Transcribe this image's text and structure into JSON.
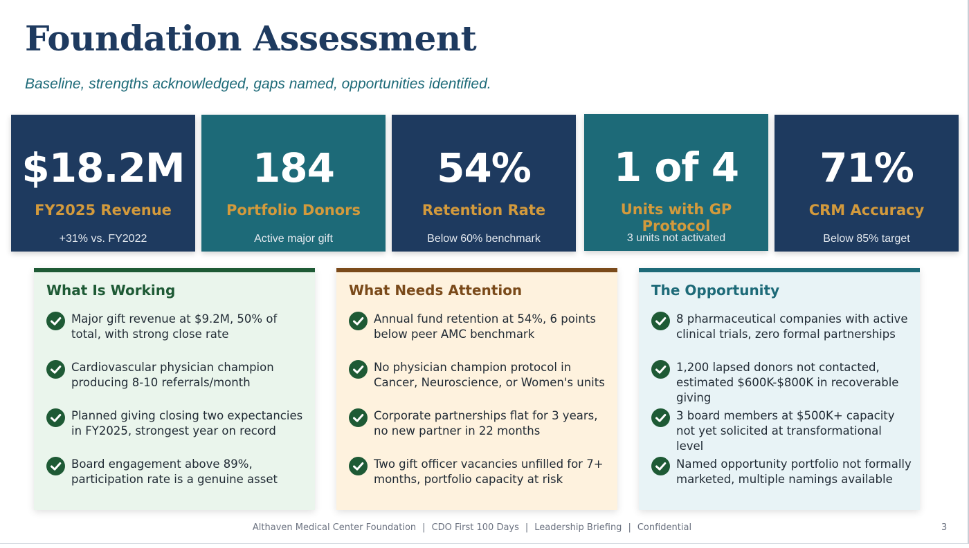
{
  "title": "Foundation Assessment",
  "subtitle": "Baseline, strengths acknowledged, gaps named, opportunities identified.",
  "stats": [
    {
      "value": "$18.2M",
      "label": "FY2025 Revenue",
      "note": "+31% vs. FY2022"
    },
    {
      "value": "184",
      "label": "Portfolio Donors",
      "note": "Active major gift"
    },
    {
      "value": "54%",
      "label": "Retention Rate",
      "note": "Below 60% benchmark"
    },
    {
      "value": "1 of 4",
      "label": "Units with GP Protocol",
      "note": "3 units not activated"
    },
    {
      "value": "71%",
      "label": "CRM Accuracy",
      "note": "Below 85% target"
    }
  ],
  "panels": [
    {
      "heading": "What Is Working",
      "items": [
        "Major gift revenue at $9.2M, 50% of total, with strong close rate",
        "Cardiovascular physician champion producing 8-10 referrals/month",
        "Planned giving closing two expectancies in FY2025, strongest year on record",
        "Board engagement above 89%, participation rate is a genuine asset"
      ]
    },
    {
      "heading": "What Needs Attention",
      "items": [
        "Annual fund retention at 54%, 6 points below peer AMC benchmark",
        "No physician champion protocol in Cancer, Neuroscience, or Women's units",
        "Corporate partnerships flat for 3 years, no new partner in 22 months",
        "Two gift officer vacancies unfilled for 7+ months, portfolio capacity at risk"
      ]
    },
    {
      "heading": "The Opportunity",
      "items": [
        "8 pharmaceutical companies with active clinical trials, zero formal partnerships",
        "1,200 lapsed donors not contacted, estimated $600K-$800K in recoverable giving",
        "3 board members at $500K+ capacity not yet solicited at transformational level",
        "Named opportunity portfolio not formally marketed, multiple namings available"
      ]
    }
  ],
  "footer": {
    "parts": [
      "Althaven Medical Center Foundation",
      "CDO First 100 Days",
      "Leadership Briefing",
      "Confidential"
    ],
    "separator": "|",
    "page_number": "3"
  },
  "colors": {
    "navy": "#1e3a5f",
    "teal": "#1d6a78",
    "gold": "#d39a3c",
    "green": "#1e5a35",
    "brown": "#7a4a1a"
  },
  "icons": {
    "item_marker": "check-circle-icon"
  }
}
